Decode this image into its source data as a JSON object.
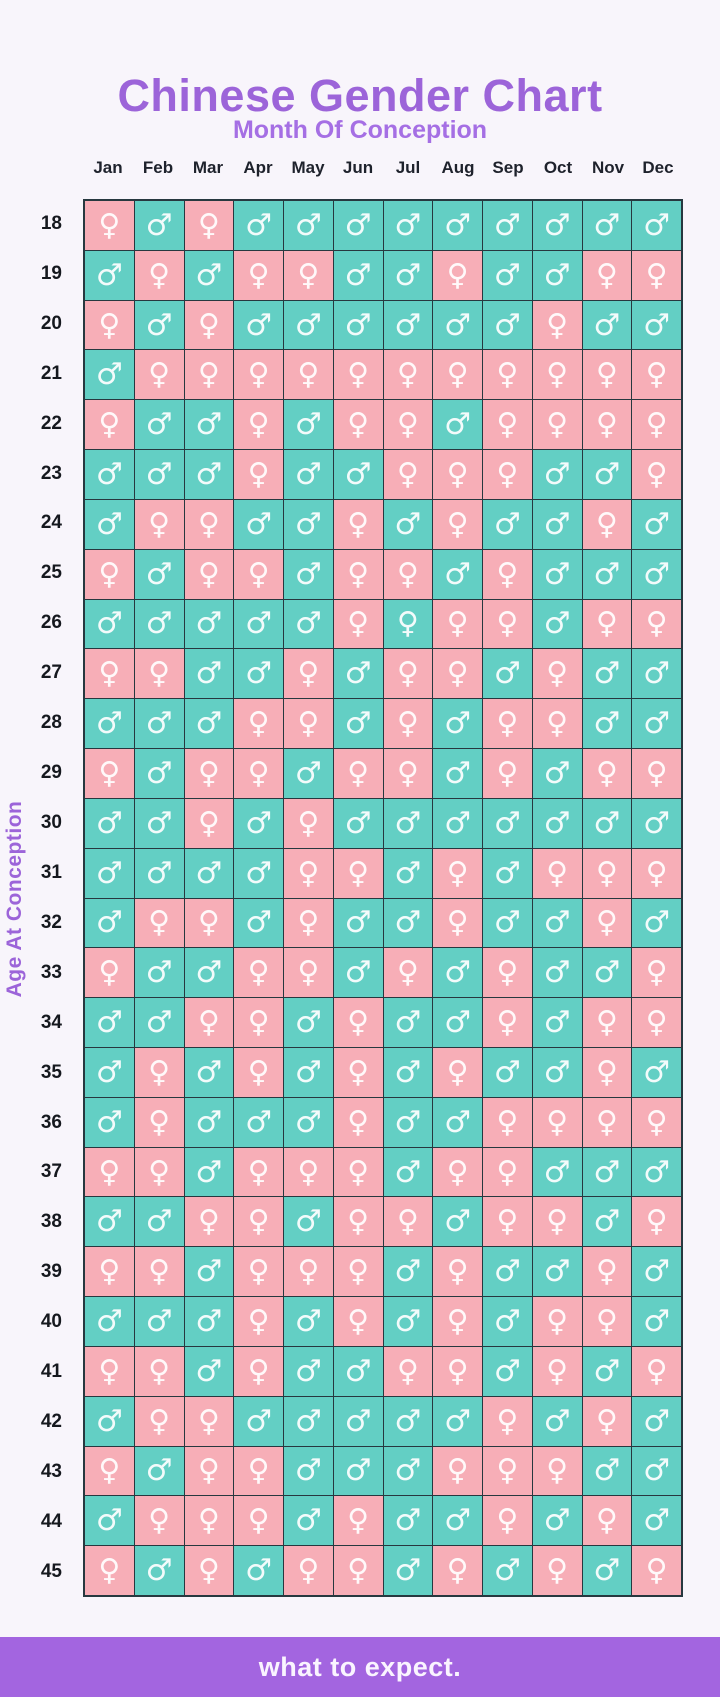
{
  "title": "Chinese Gender Chart",
  "subtitle": "Month Of Conception",
  "y_axis_label": "Age At Conception",
  "months": [
    "Jan",
    "Feb",
    "Mar",
    "Apr",
    "May",
    "Jun",
    "Jul",
    "Aug",
    "Sep",
    "Oct",
    "Nov",
    "Dec"
  ],
  "symbols": {
    "female": "♀",
    "male": "♂"
  },
  "cell_types": {
    "F": {
      "symbol": "female",
      "bg": "female"
    },
    "M": {
      "symbol": "male",
      "bg": "male"
    },
    "Ft": {
      "symbol": "female",
      "bg": "male"
    }
  },
  "colors": {
    "background": "#f8f5fb",
    "title": "#9c64d9",
    "subtitle": "#a56fe4",
    "label_text": "#15181e",
    "female_cell": "#f7aeb7",
    "male_cell": "#63cfc4",
    "grid_border": "#27383f",
    "symbol": "#ffffff",
    "footer_bar": "#a365e0"
  },
  "footer": {
    "brand": "what to expect."
  },
  "chart_data": {
    "type": "table",
    "title": "Chinese Gender Chart",
    "xlabel": "Month Of Conception",
    "ylabel": "Age At Conception",
    "x_categories": [
      "Jan",
      "Feb",
      "Mar",
      "Apr",
      "May",
      "Jun",
      "Jul",
      "Aug",
      "Sep",
      "Oct",
      "Nov",
      "Dec"
    ],
    "ages": [
      18,
      19,
      20,
      21,
      22,
      23,
      24,
      25,
      26,
      27,
      28,
      29,
      30,
      31,
      32,
      33,
      34,
      35,
      36,
      37,
      38,
      39,
      40,
      41,
      42,
      43,
      44,
      45
    ],
    "value_legend": "F = female (pink), M = male (teal), Ft = female symbol on teal cell",
    "grid": [
      [
        "F",
        "M",
        "F",
        "M",
        "M",
        "M",
        "M",
        "M",
        "M",
        "M",
        "M",
        "M"
      ],
      [
        "M",
        "F",
        "M",
        "F",
        "F",
        "M",
        "M",
        "F",
        "M",
        "M",
        "F",
        "F"
      ],
      [
        "F",
        "M",
        "F",
        "M",
        "M",
        "M",
        "M",
        "M",
        "M",
        "F",
        "M",
        "M"
      ],
      [
        "M",
        "F",
        "F",
        "F",
        "F",
        "F",
        "F",
        "F",
        "F",
        "F",
        "F",
        "F"
      ],
      [
        "F",
        "M",
        "M",
        "F",
        "M",
        "F",
        "F",
        "M",
        "F",
        "F",
        "F",
        "F"
      ],
      [
        "M",
        "M",
        "M",
        "F",
        "M",
        "M",
        "F",
        "F",
        "F",
        "M",
        "M",
        "F"
      ],
      [
        "M",
        "F",
        "F",
        "M",
        "M",
        "F",
        "M",
        "F",
        "M",
        "M",
        "F",
        "M"
      ],
      [
        "F",
        "M",
        "F",
        "F",
        "M",
        "F",
        "F",
        "M",
        "F",
        "M",
        "M",
        "M"
      ],
      [
        "M",
        "M",
        "M",
        "M",
        "M",
        "F",
        "Ft",
        "F",
        "F",
        "M",
        "F",
        "F"
      ],
      [
        "F",
        "F",
        "M",
        "M",
        "F",
        "M",
        "F",
        "F",
        "M",
        "F",
        "M",
        "M"
      ],
      [
        "M",
        "M",
        "M",
        "F",
        "F",
        "M",
        "F",
        "M",
        "F",
        "F",
        "M",
        "M"
      ],
      [
        "F",
        "M",
        "F",
        "F",
        "M",
        "F",
        "F",
        "M",
        "F",
        "M",
        "F",
        "F"
      ],
      [
        "M",
        "M",
        "F",
        "M",
        "F",
        "M",
        "M",
        "M",
        "M",
        "M",
        "M",
        "M"
      ],
      [
        "M",
        "M",
        "M",
        "M",
        "F",
        "F",
        "M",
        "F",
        "M",
        "F",
        "F",
        "F"
      ],
      [
        "M",
        "F",
        "F",
        "M",
        "F",
        "M",
        "M",
        "F",
        "M",
        "M",
        "F",
        "M"
      ],
      [
        "F",
        "M",
        "M",
        "F",
        "F",
        "M",
        "F",
        "M",
        "F",
        "M",
        "M",
        "F"
      ],
      [
        "M",
        "M",
        "F",
        "F",
        "M",
        "F",
        "M",
        "M",
        "F",
        "M",
        "F",
        "F"
      ],
      [
        "M",
        "F",
        "M",
        "F",
        "M",
        "F",
        "M",
        "F",
        "M",
        "M",
        "F",
        "M"
      ],
      [
        "M",
        "F",
        "M",
        "M",
        "M",
        "F",
        "M",
        "M",
        "F",
        "F",
        "F",
        "F"
      ],
      [
        "F",
        "F",
        "M",
        "F",
        "F",
        "F",
        "M",
        "F",
        "F",
        "M",
        "M",
        "M"
      ],
      [
        "M",
        "M",
        "F",
        "F",
        "M",
        "F",
        "F",
        "M",
        "F",
        "F",
        "M",
        "F"
      ],
      [
        "F",
        "F",
        "M",
        "F",
        "F",
        "F",
        "M",
        "F",
        "M",
        "M",
        "F",
        "M"
      ],
      [
        "M",
        "M",
        "M",
        "F",
        "M",
        "F",
        "M",
        "F",
        "M",
        "F",
        "F",
        "M"
      ],
      [
        "F",
        "F",
        "M",
        "F",
        "M",
        "M",
        "F",
        "F",
        "M",
        "F",
        "M",
        "F"
      ],
      [
        "M",
        "F",
        "F",
        "M",
        "M",
        "M",
        "M",
        "M",
        "F",
        "M",
        "F",
        "M"
      ],
      [
        "F",
        "M",
        "F",
        "F",
        "M",
        "M",
        "M",
        "F",
        "F",
        "F",
        "M",
        "M"
      ],
      [
        "M",
        "F",
        "F",
        "F",
        "M",
        "F",
        "M",
        "M",
        "F",
        "M",
        "F",
        "M"
      ],
      [
        "F",
        "M",
        "F",
        "M",
        "F",
        "F",
        "M",
        "F",
        "M",
        "F",
        "M",
        "F"
      ]
    ]
  }
}
